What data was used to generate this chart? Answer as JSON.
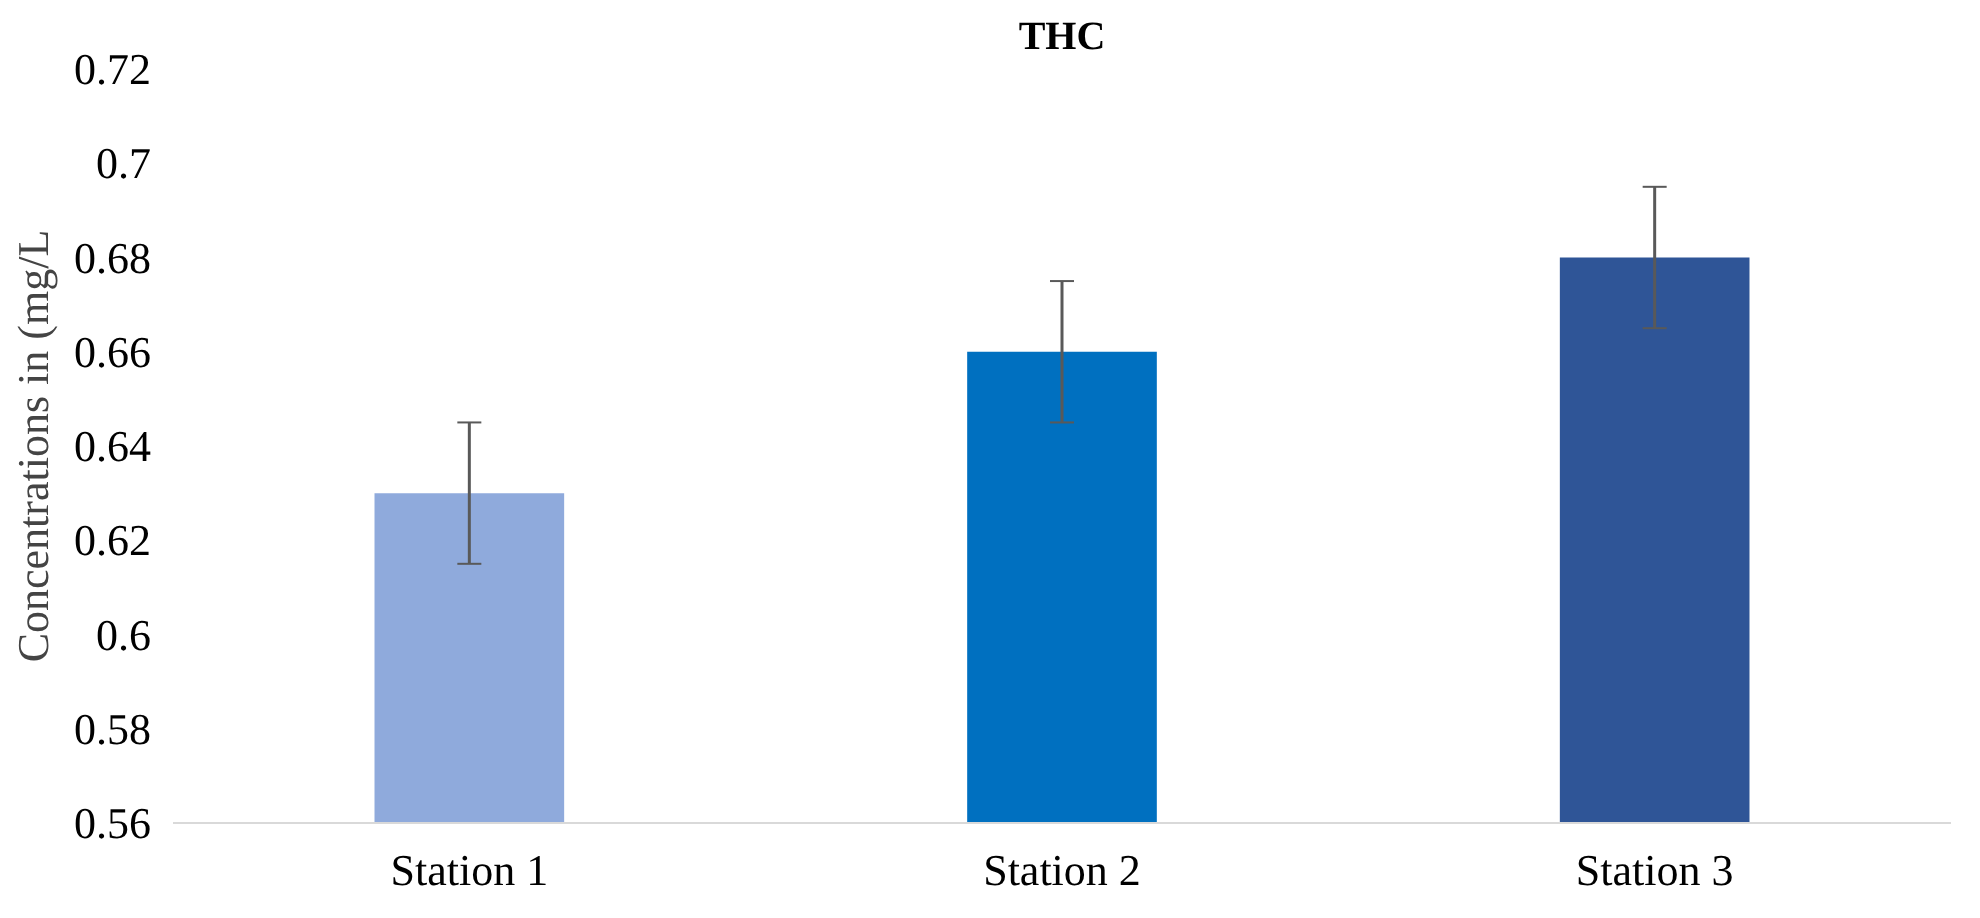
{
  "chart_data": {
    "type": "bar",
    "title": "THC",
    "ylabel": "Concentrations in (mg/L",
    "categories": [
      "Station 1",
      "Station 2",
      "Station 3"
    ],
    "values": [
      0.63,
      0.66,
      0.68
    ],
    "colors": [
      "#8faadc",
      "#0070c0",
      "#2f5597"
    ],
    "errors": [
      0.015,
      0.015,
      0.015
    ],
    "ylim": [
      0.56,
      0.72
    ],
    "yticks": [
      0.56,
      0.58,
      0.6,
      0.62,
      0.64,
      0.66,
      0.68,
      0.7,
      0.72
    ],
    "grid": false
  }
}
